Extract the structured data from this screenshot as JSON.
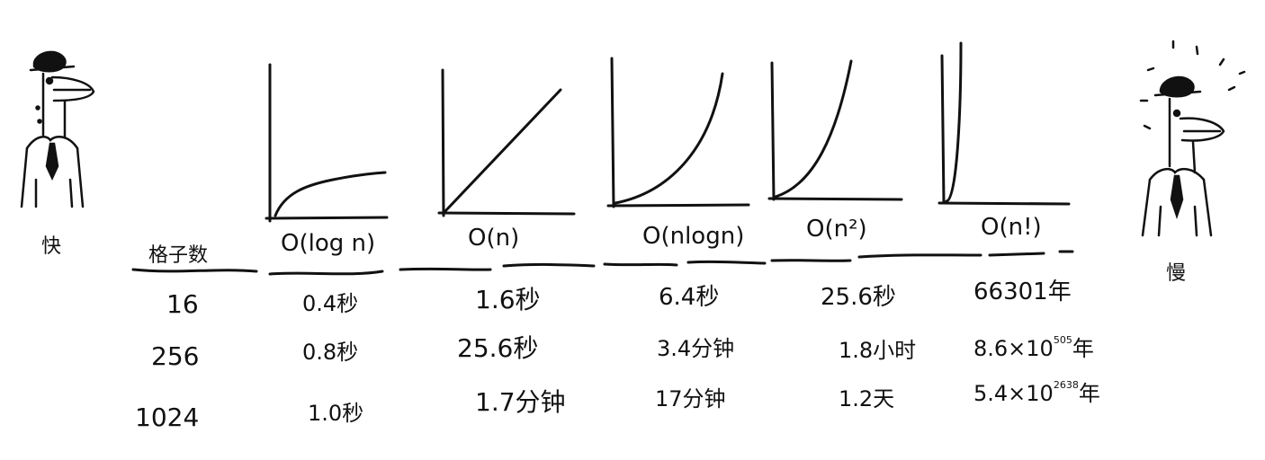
{
  "fast_label": "快",
  "slow_label": "慢",
  "grid_header": "格子数",
  "columns": [
    {
      "notation": "O(log n)",
      "curve": "log"
    },
    {
      "notation": "O(n)",
      "curve": "linear"
    },
    {
      "notation": "O(nlogn)",
      "curve": "nlogn"
    },
    {
      "notation": "O(n²)",
      "curve": "quadratic"
    },
    {
      "notation": "O(n!)",
      "curve": "factorial"
    }
  ],
  "rows": [
    {
      "n": "16",
      "cells": [
        "0.4秒",
        "1.6秒",
        "6.4秒",
        "25.6秒",
        "66301年"
      ]
    },
    {
      "n": "256",
      "cells": [
        "0.8秒",
        "25.6秒",
        "3.4分钟",
        "1.8小时",
        "8.6×10"
      ]
    },
    {
      "n": "1024",
      "cells": [
        "1.0秒",
        "1.7分钟",
        "17分钟",
        "1.2天",
        "5.4×10"
      ]
    }
  ],
  "exponents": {
    "row2": "505",
    "row3": "2638"
  },
  "exp_units": {
    "row2": "年",
    "row3": "年"
  },
  "colors": {
    "ink": "#111111",
    "background": "#ffffff"
  }
}
